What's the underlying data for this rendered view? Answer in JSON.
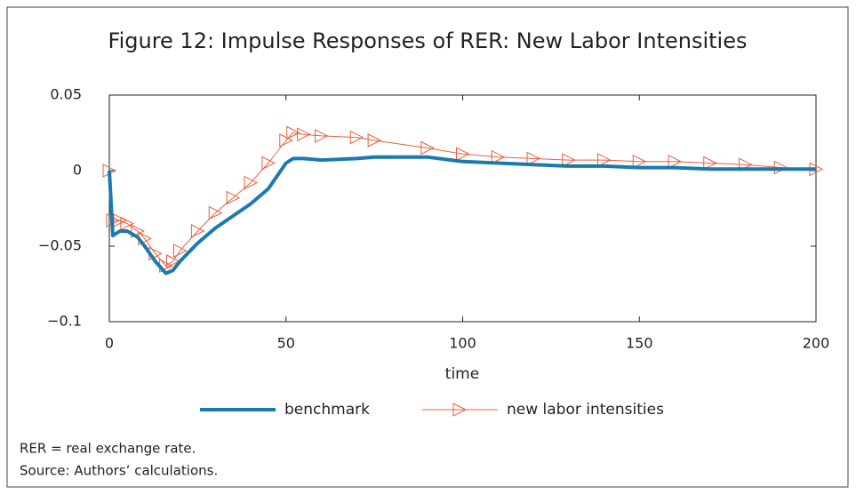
{
  "chart_data": {
    "type": "line",
    "title": "Figure 12: Impulse Responses of RER: New Labor Intensities",
    "xlabel": "time",
    "x": [
      0,
      1,
      3,
      5,
      8,
      10,
      13,
      16,
      18,
      20,
      25,
      30,
      35,
      40,
      45,
      50,
      52,
      55,
      60,
      70,
      75,
      90,
      100,
      110,
      120,
      130,
      140,
      150,
      160,
      170,
      180,
      190,
      200
    ],
    "series": [
      {
        "name": "benchmark",
        "color": "#1a7ab0",
        "marker": false,
        "values": [
          0,
          -0.043,
          -0.04,
          -0.04,
          -0.044,
          -0.05,
          -0.06,
          -0.068,
          -0.066,
          -0.06,
          -0.048,
          -0.038,
          -0.03,
          -0.022,
          -0.012,
          0.005,
          0.008,
          0.008,
          0.007,
          0.008,
          0.009,
          0.009,
          0.006,
          0.005,
          0.004,
          0.003,
          0.003,
          0.002,
          0.002,
          0.001,
          0.001,
          0.001,
          0.001
        ]
      },
      {
        "name": "new labor intensities",
        "color": "#e8603c",
        "marker": true,
        "values": [
          0,
          -0.033,
          -0.033,
          -0.035,
          -0.04,
          -0.045,
          -0.055,
          -0.063,
          -0.06,
          -0.053,
          -0.04,
          -0.028,
          -0.018,
          -0.008,
          0.005,
          0.02,
          0.025,
          0.024,
          0.023,
          0.022,
          0.02,
          0.015,
          0.011,
          0.009,
          0.008,
          0.007,
          0.007,
          0.006,
          0.006,
          0.005,
          0.004,
          0.002,
          0.001
        ]
      }
    ],
    "xlim": [
      0,
      200
    ],
    "xticks": [
      0,
      50,
      100,
      150,
      200
    ],
    "ylim": [
      -0.1,
      0.05
    ],
    "yticks": [
      {
        "value": -0.1,
        "label": "−0.1"
      },
      {
        "value": -0.05,
        "label": "−0.05"
      },
      0,
      0.05
    ],
    "grid": false,
    "legend": "bottom",
    "notes": [
      "RER = real exchange rate.",
      "Source: Authors’ calculations."
    ]
  }
}
